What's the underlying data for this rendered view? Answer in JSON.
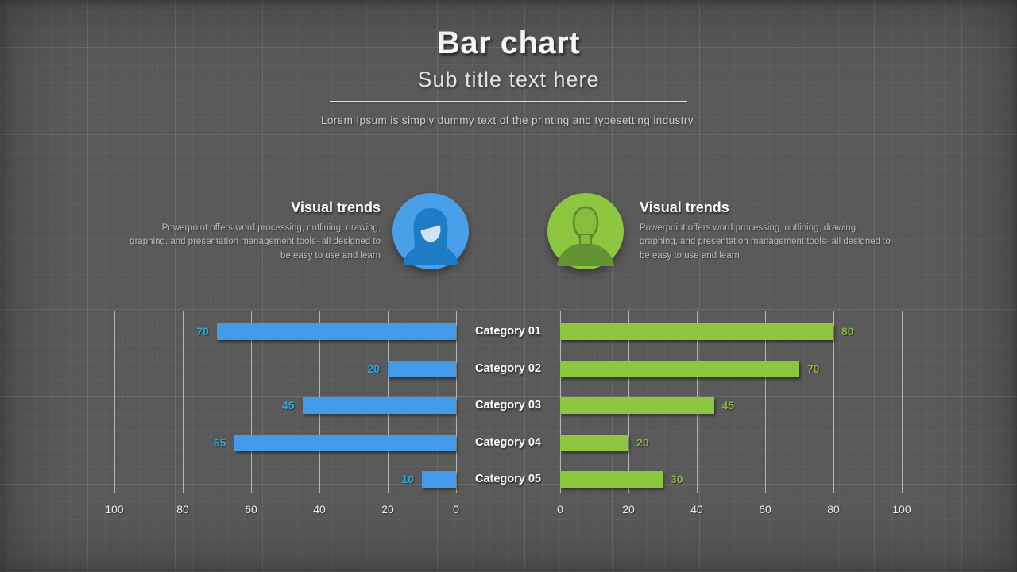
{
  "header": {
    "title": "Bar chart",
    "subtitle": "Sub title text here",
    "description": "Lorem Ipsum is simply dummy text of the printing and typesetting industry."
  },
  "features": {
    "left": {
      "heading": "Visual trends",
      "body": "Powerpoint offers word processing, outlining, drawing, graphing, and presentation management tools- all designed to be easy to use and learn",
      "icon": "female-avatar-icon",
      "accent": "#4aa0e8"
    },
    "right": {
      "heading": "Visual trends",
      "body": "Powerpoint offers word processing, outlining, drawing, graphing, and presentation management tools- all designed to be easy to use and learn",
      "icon": "male-avatar-icon",
      "accent": "#8dc63f"
    }
  },
  "chart_data": {
    "type": "bar",
    "orientation": "horizontal-mirrored",
    "categories": [
      "Category 01",
      "Category 02",
      "Category 03",
      "Category 04",
      "Category 05"
    ],
    "series": [
      {
        "name": "left-blue",
        "color": "#439ae9",
        "label_color": "#2aa9df",
        "values": [
          70,
          20,
          45,
          65,
          10
        ],
        "axis_ticks": [
          100,
          80,
          60,
          40,
          20,
          0
        ]
      },
      {
        "name": "right-green",
        "color": "#8dc63f",
        "label_color": "#85b43e",
        "values": [
          80,
          70,
          45,
          20,
          30
        ],
        "axis_ticks": [
          0,
          20,
          40,
          60,
          80,
          100
        ]
      }
    ],
    "xlim": [
      0,
      100
    ],
    "grid": true,
    "legend": "none"
  }
}
